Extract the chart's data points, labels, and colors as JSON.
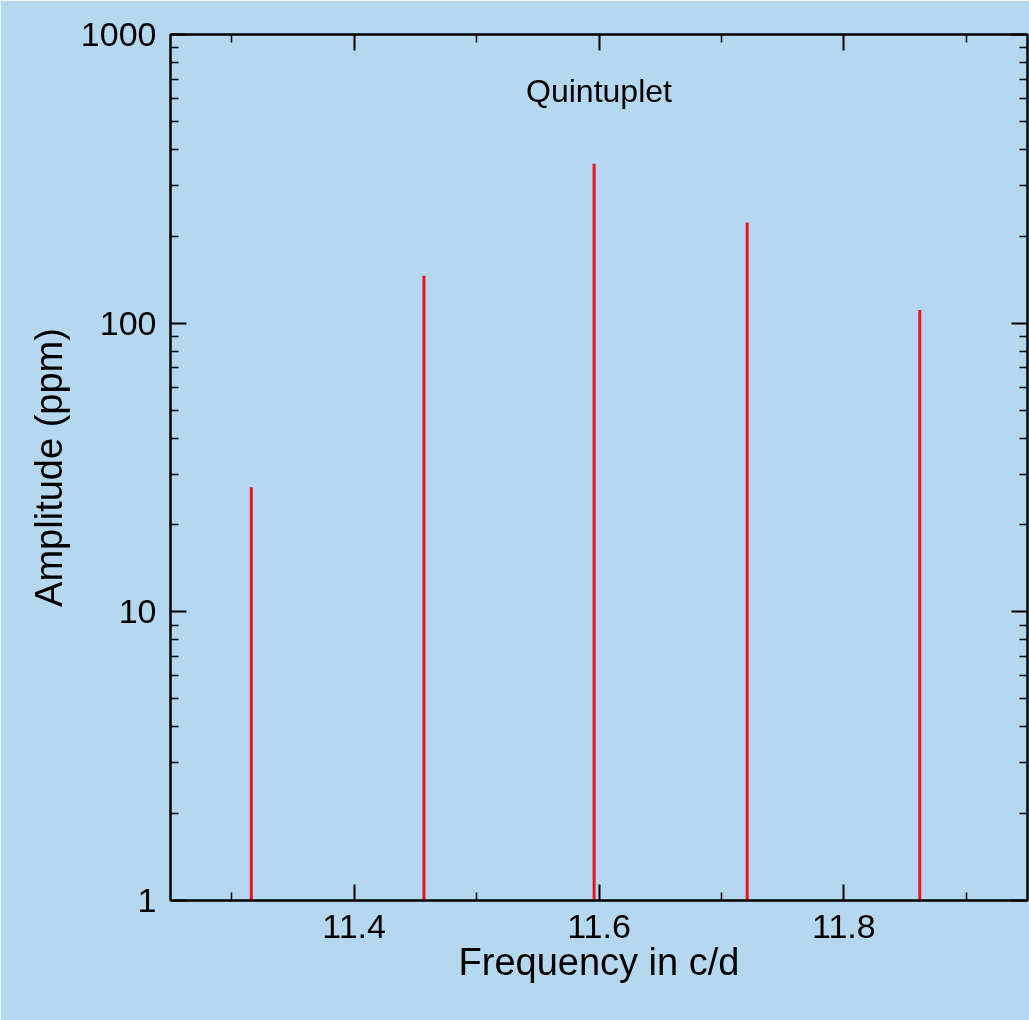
{
  "chart_data": {
    "type": "bar",
    "title": "Quintuplet",
    "xlabel": "Frequency in c/d",
    "ylabel": "Amplitude (ppm)",
    "x": [
      11.316,
      11.457,
      11.596,
      11.721,
      11.862
    ],
    "series": [
      {
        "color": "#e8141c",
        "values": [
          27,
          146,
          357,
          223,
          111
        ]
      }
    ],
    "log": true,
    "xlim": [
      11.25,
      11.95
    ],
    "ylim": [
      1,
      1000
    ],
    "xticks": [
      {
        "value": 11.3,
        "label": null
      },
      11.4,
      {
        "value": 11.5,
        "label": null
      },
      11.6,
      {
        "value": 11.7,
        "label": null
      },
      11.8,
      {
        "value": 11.9,
        "label": null
      }
    ],
    "yticks": [
      1,
      {
        "value": 2,
        "label": null
      },
      {
        "value": 3,
        "label": null
      },
      {
        "value": 4,
        "label": null
      },
      {
        "value": 5,
        "label": null
      },
      {
        "value": 6,
        "label": null
      },
      {
        "value": 7,
        "label": null
      },
      {
        "value": 8,
        "label": null
      },
      {
        "value": 9,
        "label": null
      },
      10,
      {
        "value": 20,
        "label": null
      },
      {
        "value": 30,
        "label": null
      },
      {
        "value": 40,
        "label": null
      },
      {
        "value": 50,
        "label": null
      },
      {
        "value": 60,
        "label": null
      },
      {
        "value": 70,
        "label": null
      },
      {
        "value": 80,
        "label": null
      },
      {
        "value": 90,
        "label": null
      },
      100,
      {
        "value": 200,
        "label": null
      },
      {
        "value": 300,
        "label": null
      },
      {
        "value": 400,
        "label": null
      },
      {
        "value": 500,
        "label": null
      },
      {
        "value": 600,
        "label": null
      },
      {
        "value": 700,
        "label": null
      },
      {
        "value": 800,
        "label": null
      },
      {
        "value": 900,
        "label": null
      },
      1000
    ],
    "grid": false
  }
}
